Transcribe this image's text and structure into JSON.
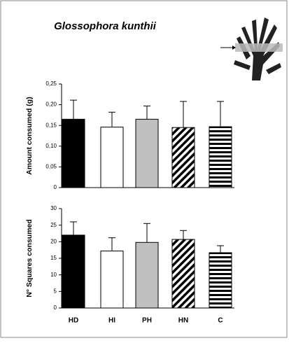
{
  "chart_data": [
    {
      "type": "bar",
      "title": "Glossophora kunthii",
      "ylabel": "Amount consumed (g)",
      "categories": [
        null,
        null,
        null,
        null,
        null
      ],
      "values": [
        0.165,
        0.146,
        0.165,
        0.145,
        0.147
      ],
      "errors": [
        0.046,
        0.036,
        0.032,
        0.063,
        0.061
      ],
      "fills": [
        "#000000",
        "#ffffff",
        "#c0c0c0",
        "diagonal",
        "horizontal"
      ],
      "ylim": [
        0,
        0.25
      ],
      "yticks": [
        0,
        {
          "value": 0.05,
          "label": "0,05"
        },
        {
          "value": 0.1,
          "label": "0,10"
        },
        {
          "value": 0.15,
          "label": "0,15"
        },
        {
          "value": 0.2,
          "label": "0,20"
        },
        {
          "value": 0.25,
          "label": "0,25"
        }
      ]
    },
    {
      "type": "bar",
      "ylabel": "N° Squares consumed",
      "categories": [
        "HD",
        "HI",
        "PH",
        "HN",
        "C"
      ],
      "values": [
        22,
        17.2,
        19.8,
        20.7,
        16.7
      ],
      "errors": [
        4,
        4,
        5.7,
        2.7,
        2.1
      ],
      "fills": [
        "#000000",
        "#ffffff",
        "#c0c0c0",
        "diagonal",
        "horizontal"
      ],
      "ylim": [
        0,
        30
      ],
      "yticks": [
        0,
        5,
        10,
        15,
        20,
        25,
        30
      ]
    }
  ]
}
